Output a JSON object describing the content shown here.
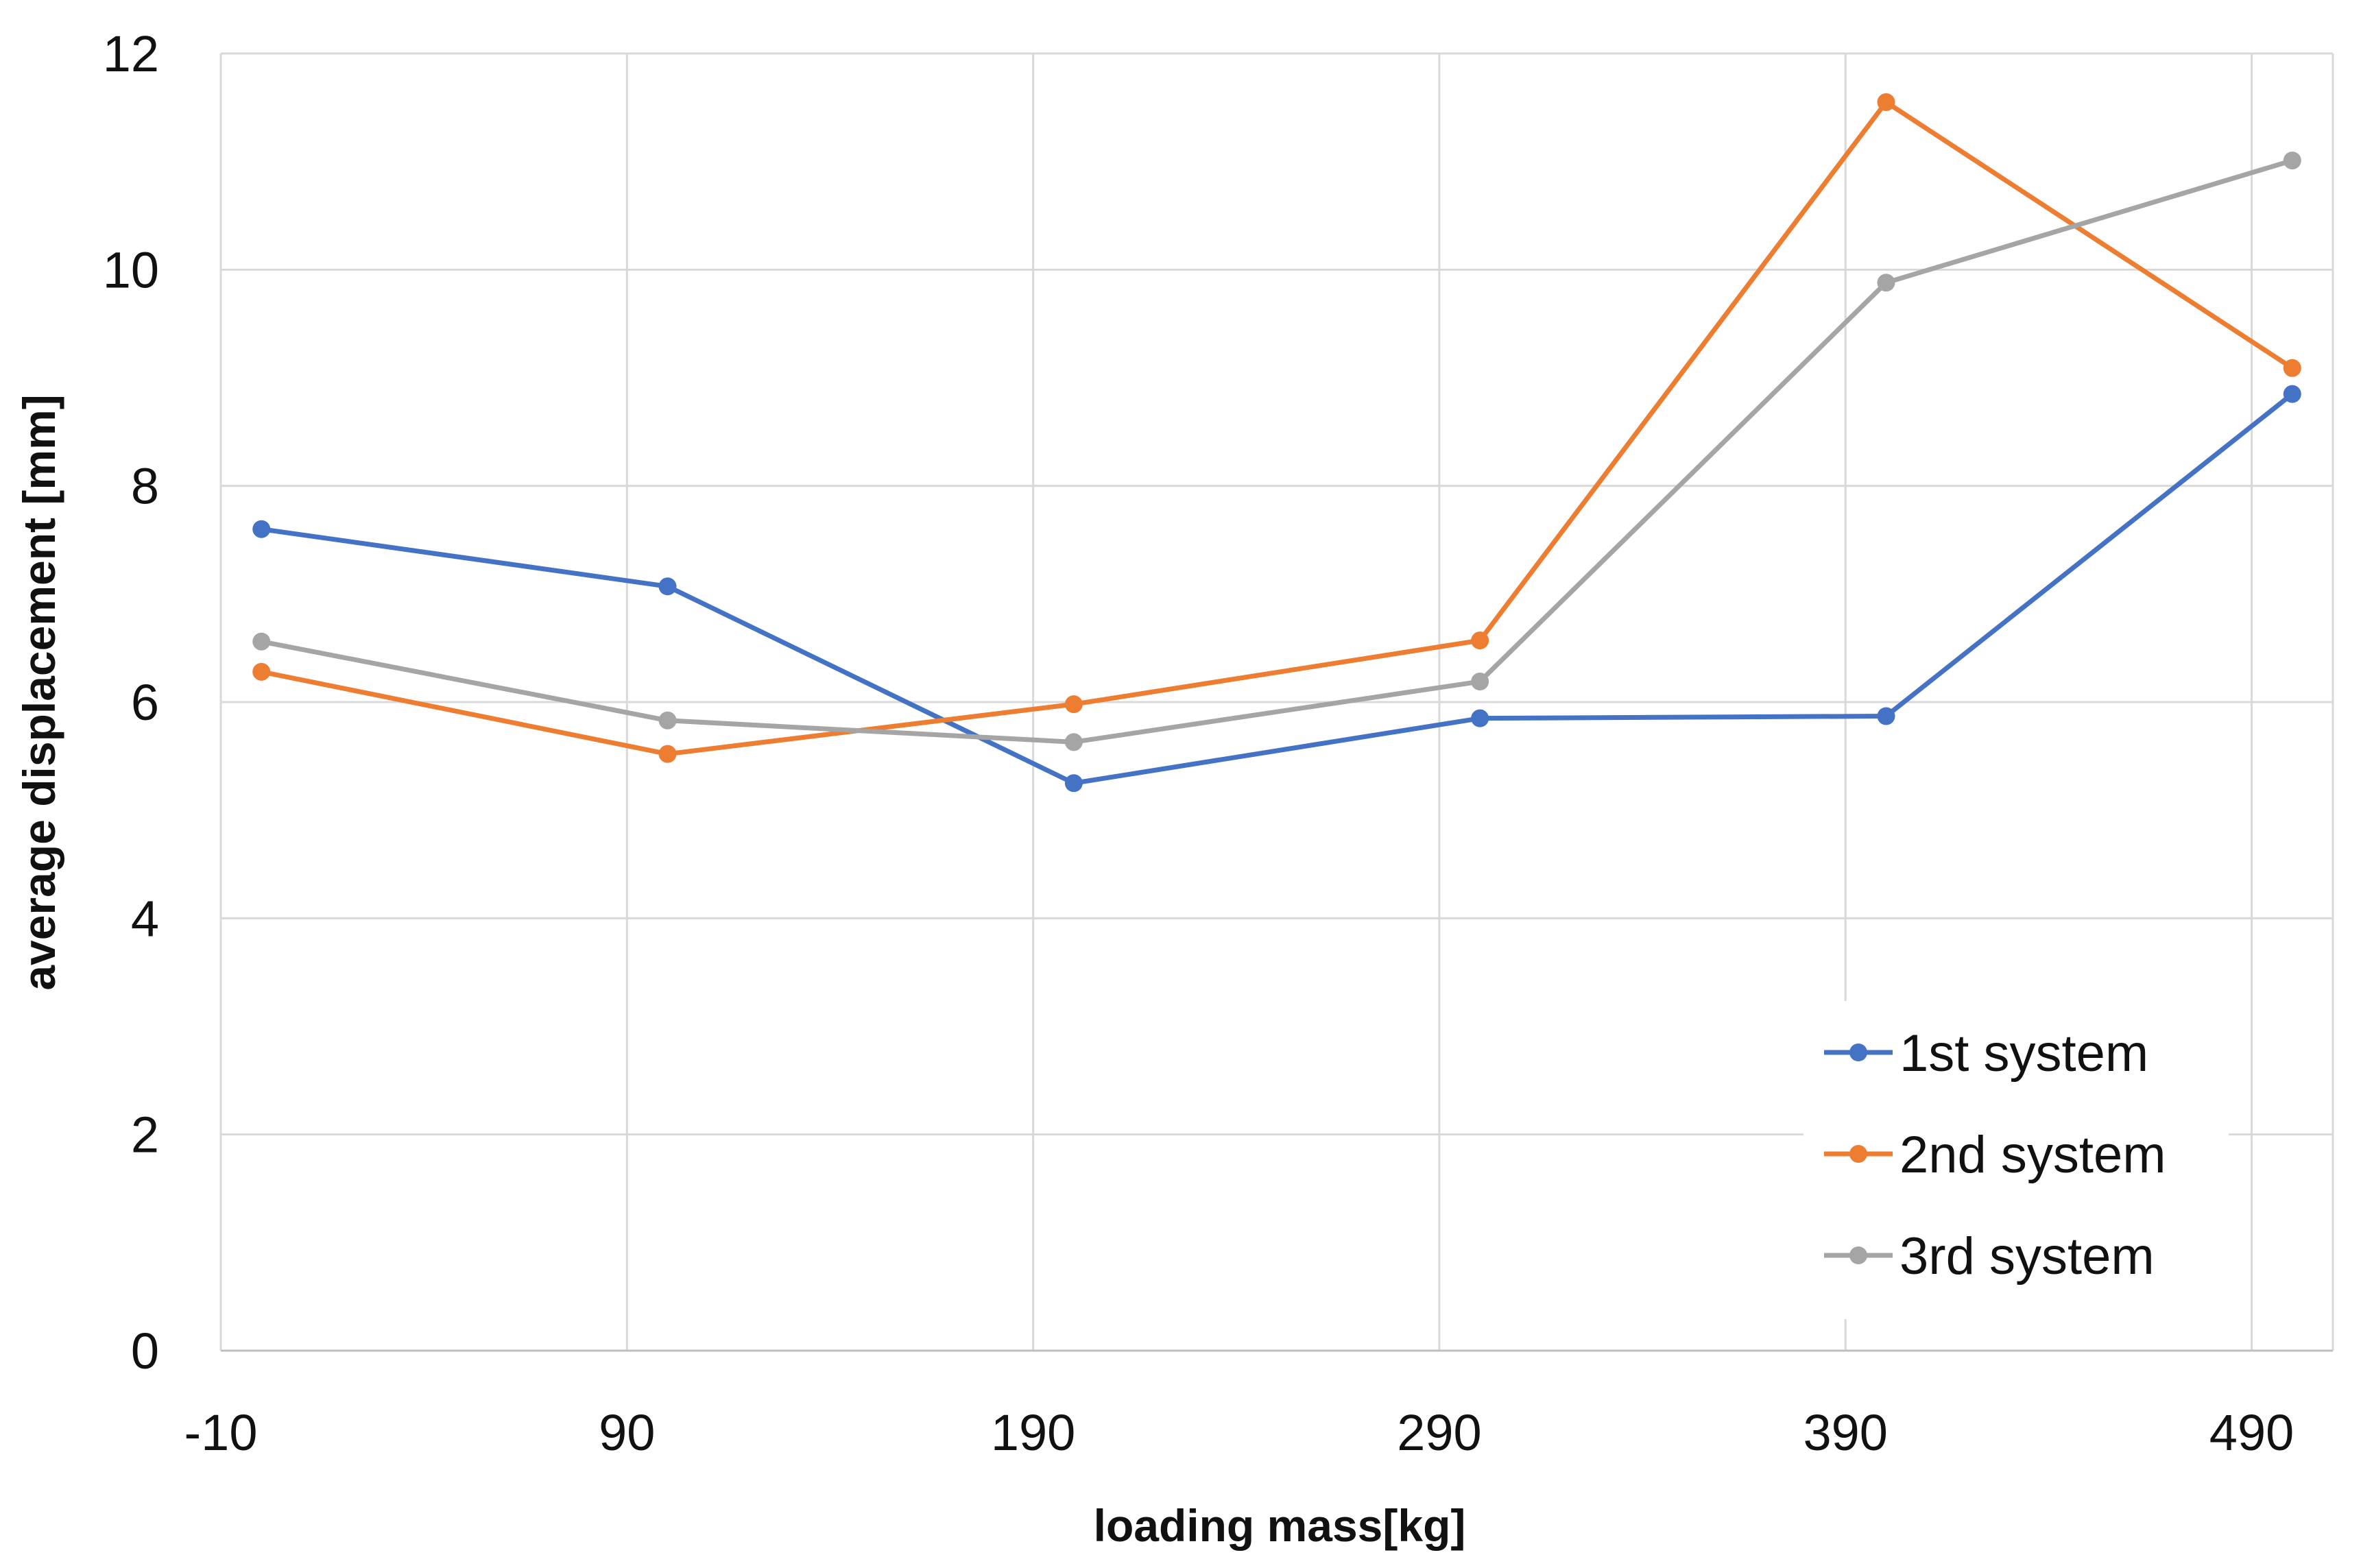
{
  "chart_data": {
    "type": "line",
    "title": "",
    "xlabel": "loading mass[kg]",
    "ylabel": "average displacement [mm]",
    "xlim": [
      -10,
      510
    ],
    "ylim": [
      0,
      12
    ],
    "xticks": [
      -10,
      90,
      190,
      290,
      390,
      490
    ],
    "yticks": [
      0,
      2,
      4,
      6,
      8,
      10,
      12
    ],
    "grid": true,
    "legend_position": "bottom-right",
    "x": [
      0,
      100,
      200,
      300,
      400,
      500
    ],
    "series": [
      {
        "name": "1st system",
        "color": "#4472c4",
        "values": [
          7.6,
          7.07,
          5.25,
          5.85,
          5.87,
          8.85
        ]
      },
      {
        "name": "2nd system",
        "color": "#ed7d31",
        "values": [
          6.28,
          5.52,
          5.98,
          6.57,
          11.55,
          9.09
        ]
      },
      {
        "name": "3rd system",
        "color": "#a5a5a5",
        "values": [
          6.56,
          5.83,
          5.63,
          6.19,
          9.88,
          11.01
        ]
      }
    ]
  }
}
